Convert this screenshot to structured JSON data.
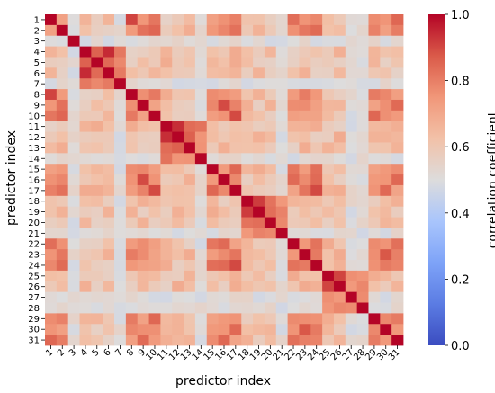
{
  "chart_data": {
    "type": "heatmap",
    "title": "",
    "xlabel": "predictor index",
    "ylabel": "predictor index",
    "categories": [
      "1",
      "2",
      "3",
      "4",
      "5",
      "6",
      "7",
      "8",
      "9",
      "10",
      "11",
      "12",
      "13",
      "14",
      "15",
      "16",
      "17",
      "18",
      "19",
      "20",
      "21",
      "22",
      "23",
      "24",
      "25",
      "26",
      "27",
      "28",
      "29",
      "30",
      "31"
    ],
    "colorbar": {
      "label": "correlation coefficient",
      "range": [
        0.0,
        1.0
      ],
      "ticks": [
        "0.0",
        "0.2",
        "0.4",
        "0.6",
        "0.8",
        "1.0"
      ],
      "colormap": "coolwarm"
    },
    "groups": [
      {
        "members": [
          1,
          2,
          8,
          9,
          10,
          15,
          16,
          17,
          22,
          23,
          24,
          29,
          30,
          31
        ],
        "within": 0.78
      },
      {
        "members": [
          4,
          5,
          6,
          7
        ],
        "within": 0.9
      },
      {
        "members": [
          11,
          12,
          13,
          14
        ],
        "within": 0.9
      },
      {
        "members": [
          18,
          19,
          20,
          21
        ],
        "within": 0.88
      },
      {
        "members": [
          25,
          26,
          27,
          28
        ],
        "within": 0.88
      }
    ],
    "between_groups": 0.62,
    "diagonal": 1.0
  }
}
